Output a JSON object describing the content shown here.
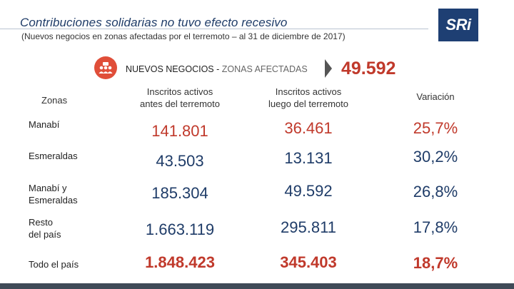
{
  "header": {
    "title": "Contribuciones solidarias no tuvo efecto recesivo",
    "subtitle": "(Nuevos negocios en zonas afectadas por el terremoto – al 31 de diciembre de 2017)",
    "logo": "SRi"
  },
  "banner": {
    "label_bold": "NUEVOS NEGOCIOS -",
    "label_light": " ZONAS AFECTADAS",
    "total": "49.592",
    "icon": "business-people-icon"
  },
  "table": {
    "headers": {
      "zonas": "Zonas",
      "antes_line1": "Inscritos activos",
      "antes_line2": "antes del terremoto",
      "luego_line1": "Inscritos activos",
      "luego_line2": "luego del terremoto",
      "variacion": "Variación"
    },
    "rows": [
      {
        "zona_line1": "Manabí",
        "zona_line2": "",
        "antes": "141.801",
        "luego": "36.461",
        "variacion": "25,7%"
      },
      {
        "zona_line1": "Esmeraldas",
        "zona_line2": "",
        "antes": "43.503",
        "luego": "13.131",
        "variacion": "30,2%"
      },
      {
        "zona_line1": "Manabí y",
        "zona_line2": "Esmeraldas",
        "antes": "185.304",
        "luego": "49.592",
        "variacion": "26,8%"
      },
      {
        "zona_line1": "Resto",
        "zona_line2": "del país",
        "antes": "1.663.119",
        "luego": "295.811",
        "variacion": "17,8%"
      },
      {
        "zona_line1": "Todo el país",
        "zona_line2": "",
        "antes": "1.848.423",
        "luego": "345.403",
        "variacion": "18,7%"
      }
    ]
  },
  "colors": {
    "red": "#c0392b",
    "navy": "#1f3c68",
    "icon_bg": "#e04e39"
  }
}
